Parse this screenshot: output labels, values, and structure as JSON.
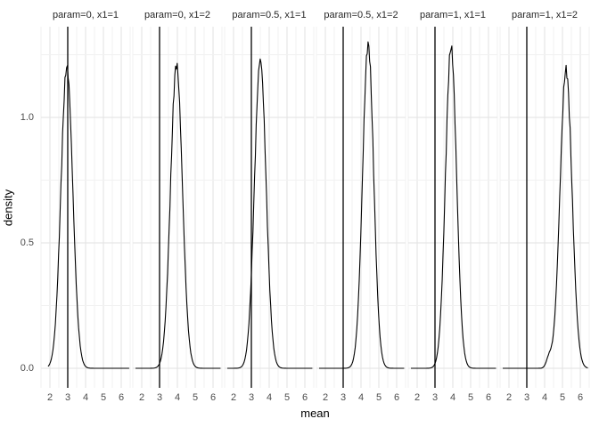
{
  "chart_data": {
    "type": "line",
    "subtype": "faceted-density-plot",
    "title": "",
    "xlabel": "mean",
    "ylabel": "density",
    "x_tick_labels": [
      "2",
      "3",
      "4",
      "5",
      "6"
    ],
    "x_tick_values": [
      2,
      3,
      4,
      5,
      6
    ],
    "y_tick_labels": [
      "0.0",
      "0.5",
      "1.0"
    ],
    "y_tick_values": [
      0,
      0.5,
      1.0
    ],
    "x_domain": [
      1.5,
      6.5
    ],
    "y_domain": [
      -0.08,
      1.36
    ],
    "grid": "major and minor, light gray, no panel border",
    "legend_position": "none",
    "facets": [
      {
        "label": "param=0, x1=1",
        "vline_x": 3,
        "peak_x": 2.95,
        "peak_density": 1.2,
        "sigma": 0.33,
        "x_range": [
          1.9,
          6.45
        ]
      },
      {
        "label": "param=0, x1=2",
        "vline_x": 3,
        "peak_x": 3.95,
        "peak_density": 1.21,
        "sigma": 0.33,
        "x_range": [
          1.65,
          6.45
        ]
      },
      {
        "label": "param=0.5, x1=1",
        "vline_x": 3,
        "peak_x": 3.5,
        "peak_density": 1.23,
        "sigma": 0.325,
        "x_range": [
          1.65,
          6.45
        ]
      },
      {
        "label": "param=0.5, x1=2",
        "vline_x": 3,
        "peak_x": 4.4,
        "peak_density": 1.29,
        "sigma": 0.31,
        "x_range": [
          1.65,
          6.45
        ]
      },
      {
        "label": "param=1, x1=1",
        "vline_x": 3,
        "peak_x": 3.9,
        "peak_density": 1.28,
        "sigma": 0.31,
        "x_range": [
          1.65,
          6.45
        ]
      },
      {
        "label": "param=1, x1=2",
        "vline_x": 3,
        "peak_x": 5.2,
        "peak_density": 1.19,
        "sigma": 0.335,
        "x_range": [
          1.65,
          6.45
        ],
        "shoulder": {
          "x": 4.25,
          "height": 0.04,
          "sigma": 0.15
        }
      }
    ]
  },
  "colors": {
    "background": "#ffffff",
    "curve": "#000000",
    "vline": "#000000",
    "grid_major": "#e2e2e2",
    "grid_minor": "#f1f1f1",
    "axis_text": "#4d4d4d",
    "strip_text": "#262626",
    "axis_title": "#000000"
  }
}
